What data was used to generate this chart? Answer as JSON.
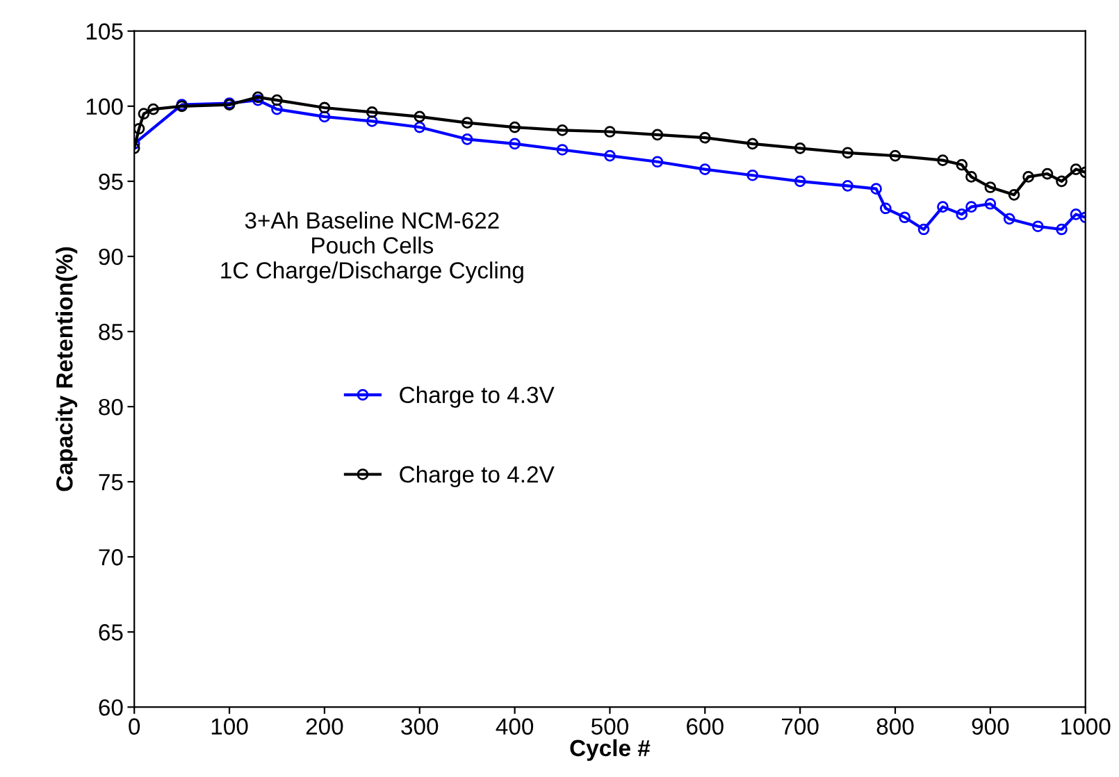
{
  "chart_data": {
    "type": "line",
    "xlabel": "Cycle #",
    "ylabel": "Capacity Retention(%)",
    "xlim": [
      0,
      1000
    ],
    "xticks": [
      0,
      100,
      200,
      300,
      400,
      500,
      600,
      700,
      800,
      900,
      1000
    ],
    "ylim": [
      60,
      105
    ],
    "yticks": [
      60,
      65,
      70,
      75,
      80,
      85,
      90,
      95,
      100,
      105
    ],
    "grid": false,
    "legend": "left",
    "marker": "circle",
    "annotations": [
      "3+Ah Baseline NCM-622\nPouch Cells\n1C Charge/Discharge Cycling"
    ],
    "series": [
      {
        "name": "Charge to 4.3V",
        "color": "#0000ff",
        "x": [
          0,
          50,
          100,
          130,
          150,
          200,
          250,
          300,
          350,
          400,
          450,
          500,
          550,
          600,
          650,
          700,
          750,
          780,
          790,
          810,
          830,
          850,
          870,
          880,
          900,
          920,
          950,
          975,
          990,
          1000
        ],
        "values": [
          97.5,
          100.1,
          100.2,
          100.4,
          99.8,
          99.3,
          99.0,
          98.6,
          97.8,
          97.5,
          97.1,
          96.7,
          96.3,
          95.8,
          95.4,
          95.0,
          94.7,
          94.5,
          93.2,
          92.6,
          91.8,
          93.3,
          92.8,
          93.3,
          93.5,
          92.5,
          92.0,
          91.8,
          92.8,
          92.6
        ]
      },
      {
        "name": "Charge to 4.2V",
        "color": "#000000",
        "x": [
          0,
          5,
          10,
          20,
          50,
          100,
          130,
          150,
          200,
          250,
          300,
          350,
          400,
          450,
          500,
          550,
          600,
          650,
          700,
          750,
          800,
          850,
          870,
          880,
          900,
          925,
          940,
          960,
          975,
          990,
          1000
        ],
        "values": [
          97.2,
          98.5,
          99.5,
          99.8,
          100.0,
          100.1,
          100.6,
          100.4,
          99.9,
          99.6,
          99.3,
          98.9,
          98.6,
          98.4,
          98.3,
          98.1,
          97.9,
          97.5,
          97.2,
          96.9,
          96.7,
          96.4,
          96.1,
          95.3,
          94.6,
          94.1,
          95.3,
          95.5,
          95.0,
          95.8,
          95.6
        ]
      }
    ]
  }
}
